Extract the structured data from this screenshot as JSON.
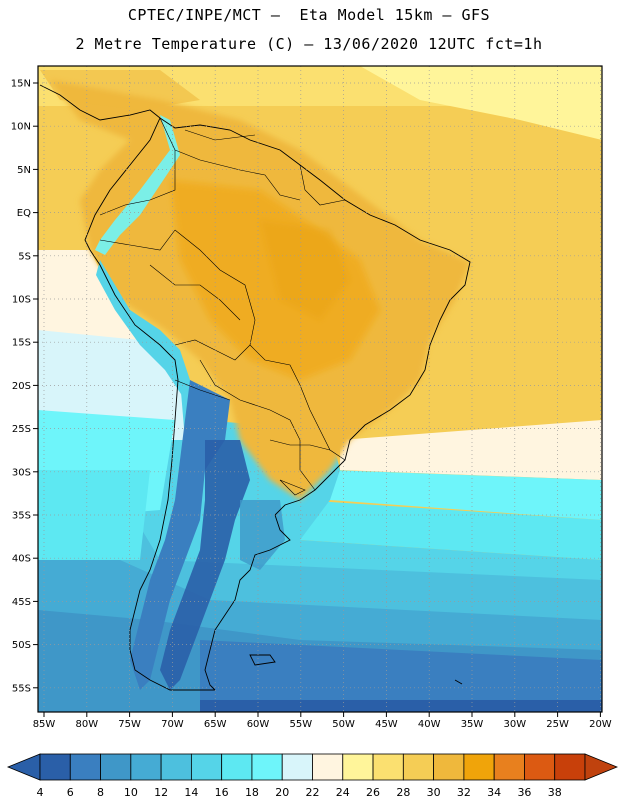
{
  "header": {
    "line1": "CPTEC/INPE/MCT –  Eta Model 15km – GFS",
    "line2": "2 Metre Temperature (C) – 13/06/2020 12UTC fct=1h"
  },
  "axes": {
    "lat_labels": [
      "15N",
      "10N",
      "5N",
      "EQ",
      "5S",
      "10S",
      "15S",
      "20S",
      "25S",
      "30S",
      "35S",
      "40S",
      "45S",
      "50S",
      "55S"
    ],
    "lon_labels": [
      "85W",
      "80W",
      "75W",
      "70W",
      "65W",
      "60W",
      "55W",
      "50W",
      "45W",
      "40W",
      "35W",
      "30W",
      "25W",
      "20W"
    ]
  },
  "colorbar": {
    "labels": [
      "4",
      "6",
      "8",
      "10",
      "12",
      "14",
      "16",
      "18",
      "20",
      "22",
      "24",
      "26",
      "28",
      "30",
      "32",
      "34",
      "36",
      "38"
    ],
    "colors": [
      "#2a5fa8",
      "#3a7fc0",
      "#3f97c8",
      "#45abd4",
      "#4dc0de",
      "#55d4e8",
      "#5de8f2",
      "#6ef5fa",
      "#d8f5fa",
      "#fff5e0",
      "#fff59a",
      "#fbe070",
      "#f5cd55",
      "#efb83c",
      "#f0a40a",
      "#e8801e",
      "#dc5a12",
      "#c8400a"
    ],
    "left_arrow_color": "#2a5fa8",
    "right_arrow_color": "#c0420e"
  }
}
